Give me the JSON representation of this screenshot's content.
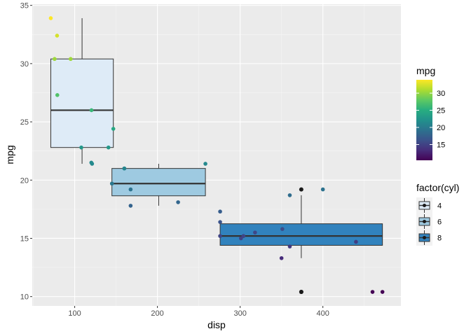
{
  "chart_data": {
    "type": "boxplot-scatter",
    "xlabel": "disp",
    "ylabel": "mpg",
    "xlim": [
      48.68,
      494.32
    ],
    "ylim": [
      9.2,
      35.1
    ],
    "x_ticks": [
      100,
      200,
      300,
      400
    ],
    "y_ticks": [
      10,
      15,
      20,
      25,
      30,
      35
    ],
    "grid": true,
    "boxes": [
      {
        "group": "4",
        "fill": "#deebf7",
        "xmin": 71.1,
        "xmax": 146.7,
        "whisker_low": 21.4,
        "q1": 22.8,
        "median": 26.0,
        "q3": 30.4,
        "whisker_high": 33.9,
        "outliers": []
      },
      {
        "group": "6",
        "fill": "#9ecae1",
        "xmin": 145.0,
        "xmax": 258.0,
        "whisker_low": 17.8,
        "q1": 18.65,
        "median": 19.7,
        "q3": 21.0,
        "whisker_high": 21.4,
        "outliers": []
      },
      {
        "group": "8",
        "fill": "#3182bd",
        "xmin": 275.8,
        "xmax": 472.0,
        "whisker_low": 13.3,
        "q1": 14.4,
        "median": 15.2,
        "q3": 16.25,
        "whisker_high": 18.7,
        "outliers": [
          [
            472.0,
            10.4
          ],
          [
            460.0,
            10.4
          ],
          [
            400.0,
            19.2
          ]
        ]
      }
    ],
    "points": [
      [
        160,
        21.0
      ],
      [
        160,
        21.0
      ],
      [
        108,
        22.8
      ],
      [
        258,
        21.4
      ],
      [
        360,
        18.7
      ],
      [
        225,
        18.1
      ],
      [
        360,
        14.3
      ],
      [
        146.7,
        24.4
      ],
      [
        140.8,
        22.8
      ],
      [
        167.6,
        19.2
      ],
      [
        167.6,
        17.8
      ],
      [
        275.8,
        16.4
      ],
      [
        275.8,
        17.3
      ],
      [
        275.8,
        15.2
      ],
      [
        472,
        10.4
      ],
      [
        460,
        10.4
      ],
      [
        440,
        14.7
      ],
      [
        78.7,
        32.4
      ],
      [
        75.7,
        30.4
      ],
      [
        71.1,
        33.9
      ],
      [
        120.1,
        21.5
      ],
      [
        318,
        15.5
      ],
      [
        304,
        15.2
      ],
      [
        350,
        13.3
      ],
      [
        400,
        19.2
      ],
      [
        79,
        27.3
      ],
      [
        120.3,
        26.0
      ],
      [
        95.1,
        30.4
      ],
      [
        351,
        15.8
      ],
      [
        145,
        19.7
      ],
      [
        301,
        15.0
      ],
      [
        121,
        21.4
      ]
    ],
    "legend_colorbar": {
      "title": "mpg",
      "ticks": [
        15,
        20,
        25,
        30
      ],
      "range": [
        10.4,
        33.9
      ]
    },
    "legend_fill": {
      "title": "factor(cyl)",
      "entries": [
        "4",
        "6",
        "8"
      ],
      "colors": [
        "#deebf7",
        "#9ecae1",
        "#3182bd"
      ]
    }
  }
}
